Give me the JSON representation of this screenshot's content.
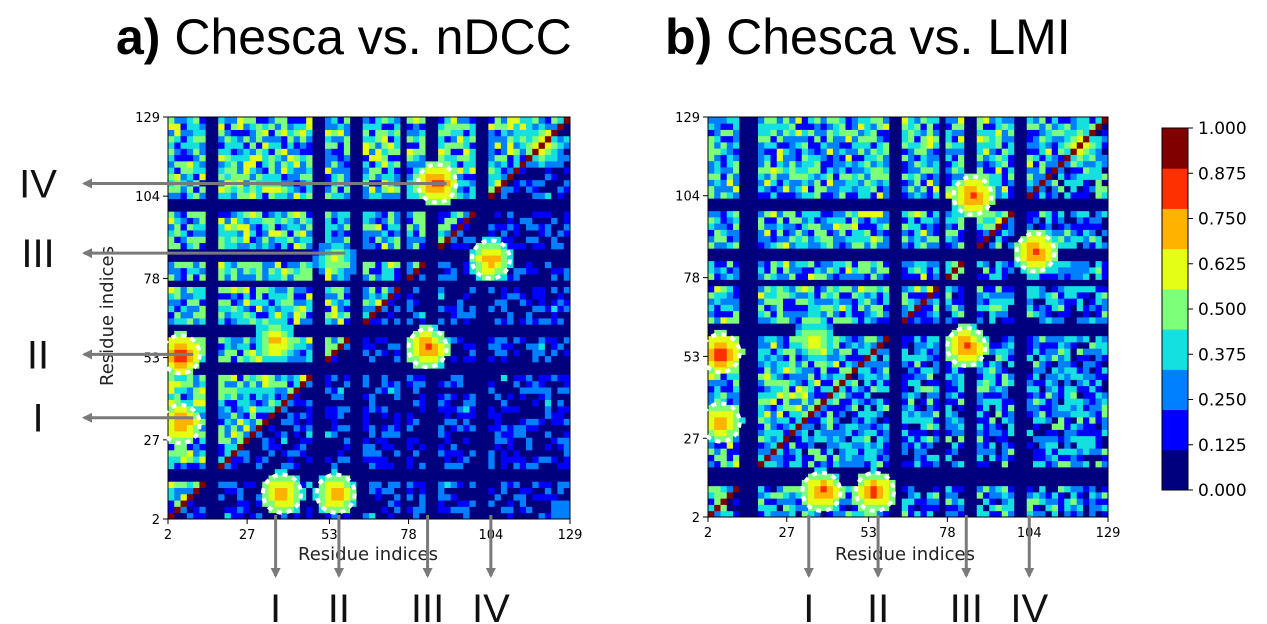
{
  "titles": {
    "a": {
      "tag": "a)",
      "text": "Chesca vs. nDCC"
    },
    "b": {
      "tag": "b)",
      "text": "Chesca vs. LMI"
    }
  },
  "colormap": [
    "#00007f",
    "#0000ff",
    "#0080ff",
    "#15e0e0",
    "#7dff7a",
    "#e4ff14",
    "#ffb200",
    "#ff3000",
    "#800000"
  ],
  "chart_data": [
    {
      "type": "heatmap",
      "panel": "a",
      "title": "Chesca vs. nDCC",
      "xlabel": "Residue indices",
      "ylabel": "Residue indices",
      "ticks": [
        2,
        27,
        53,
        78,
        104,
        129
      ],
      "xlim": [
        2,
        129
      ],
      "ylim": [
        2,
        129
      ],
      "clim": [
        0,
        1
      ],
      "diagonal_value": 0.9,
      "upper_triangle_mean": 0.38,
      "lower_triangle_mean": 0.12,
      "low_bands": [
        15,
        17,
        50,
        62,
        76,
        85,
        101
      ],
      "hotspots": [
        {
          "x": 6,
          "y": 54,
          "value": 0.9
        },
        {
          "x": 6,
          "y": 32,
          "value": 0.85
        },
        {
          "x": 87,
          "y": 108,
          "value": 0.88
        },
        {
          "x": 55,
          "y": 84,
          "value": 0.62
        },
        {
          "x": 38,
          "y": 10,
          "value": 0.82
        },
        {
          "x": 55,
          "y": 10,
          "value": 0.82
        },
        {
          "x": 84,
          "y": 56,
          "value": 0.85
        },
        {
          "x": 104,
          "y": 84,
          "value": 0.8
        },
        {
          "x": 120,
          "y": 120,
          "value": 0.7
        },
        {
          "x": 36,
          "y": 58,
          "value": 0.75
        }
      ],
      "markers": [
        {
          "label": "I",
          "side": "left",
          "at": 34
        },
        {
          "label": "II",
          "side": "left",
          "at": 54
        },
        {
          "label": "III",
          "side": "left",
          "at": 86
        },
        {
          "label": "IV",
          "side": "left",
          "at": 108
        },
        {
          "label": "I",
          "side": "bottom",
          "at": 36
        },
        {
          "label": "II",
          "side": "bottom",
          "at": 56
        },
        {
          "label": "III",
          "side": "bottom",
          "at": 84
        },
        {
          "label": "IV",
          "side": "bottom",
          "at": 104
        }
      ]
    },
    {
      "type": "heatmap",
      "panel": "b",
      "title": "Chesca vs. LMI",
      "xlabel": "Residue indices",
      "ylabel": "",
      "ticks": [
        2,
        27,
        53,
        78,
        104,
        129
      ],
      "xlim": [
        2,
        129
      ],
      "ylim": [
        2,
        129
      ],
      "clim": [
        0,
        1
      ],
      "diagonal_value": 0.9,
      "upper_triangle_mean": 0.36,
      "lower_triangle_mean": 0.26,
      "low_bands": [
        15,
        17,
        14,
        62,
        76,
        85,
        101
      ],
      "hotspots": [
        {
          "x": 6,
          "y": 54,
          "value": 0.9
        },
        {
          "x": 6,
          "y": 32,
          "value": 0.8
        },
        {
          "x": 86,
          "y": 104,
          "value": 0.85
        },
        {
          "x": 38,
          "y": 10,
          "value": 0.85
        },
        {
          "x": 55,
          "y": 10,
          "value": 0.85
        },
        {
          "x": 84,
          "y": 56,
          "value": 0.85
        },
        {
          "x": 106,
          "y": 86,
          "value": 0.85
        },
        {
          "x": 120,
          "y": 120,
          "value": 0.7
        },
        {
          "x": 36,
          "y": 58,
          "value": 0.7
        }
      ],
      "markers": [
        {
          "label": "I",
          "side": "bottom",
          "at": 34
        },
        {
          "label": "II",
          "side": "bottom",
          "at": 56
        },
        {
          "label": "III",
          "side": "bottom",
          "at": 84
        },
        {
          "label": "IV",
          "side": "bottom",
          "at": 104
        }
      ]
    }
  ],
  "colorbar": {
    "ticks": [
      "1.000",
      "0.875",
      "0.750",
      "0.625",
      "0.500",
      "0.375",
      "0.250",
      "0.125",
      "0.000"
    ],
    "range": [
      0,
      1
    ]
  }
}
